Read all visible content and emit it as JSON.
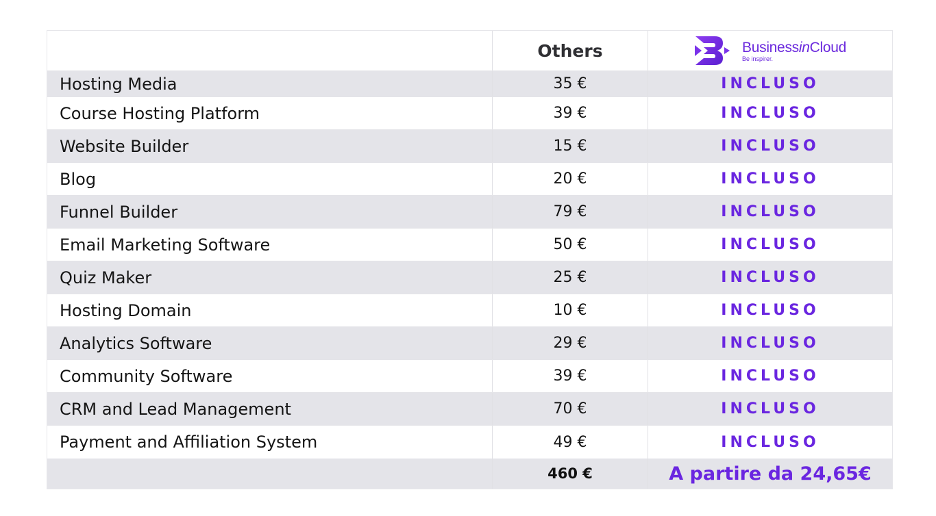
{
  "header": {
    "others_label": "Others",
    "brand": {
      "name_part1": "Business",
      "name_part2": "in",
      "name_part3": "Cloud",
      "tagline": "Be inspirer."
    }
  },
  "rows": [
    {
      "feature": "Hosting Media",
      "others": "35 €",
      "bic": "INCLUSO"
    },
    {
      "feature": "Course Hosting Platform",
      "others": "39 €",
      "bic": "INCLUSO"
    },
    {
      "feature": "Website Builder",
      "others": "15 €",
      "bic": "INCLUSO"
    },
    {
      "feature": "Blog",
      "others": "20 €",
      "bic": "INCLUSO"
    },
    {
      "feature": "Funnel Builder",
      "others": "79 €",
      "bic": "INCLUSO"
    },
    {
      "feature": "Email Marketing Software",
      "others": "50 €",
      "bic": "INCLUSO"
    },
    {
      "feature": "Quiz Maker",
      "others": "25 €",
      "bic": "INCLUSO"
    },
    {
      "feature": "Hosting Domain",
      "others": "10 €",
      "bic": "INCLUSO"
    },
    {
      "feature": "Analytics Software",
      "others": "29 €",
      "bic": "INCLUSO"
    },
    {
      "feature": "Community Software",
      "others": "39 €",
      "bic": "INCLUSO"
    },
    {
      "feature": "CRM and Lead Management",
      "others": "70 €",
      "bic": "INCLUSO"
    },
    {
      "feature": "Payment and Affiliation System",
      "others": "49 €",
      "bic": "INCLUSO"
    }
  ],
  "total": {
    "others": "460 €",
    "bic": "A partire da 24,65€"
  },
  "colors": {
    "accent": "#6a26e0",
    "row_shade": "#e4e4e9"
  }
}
